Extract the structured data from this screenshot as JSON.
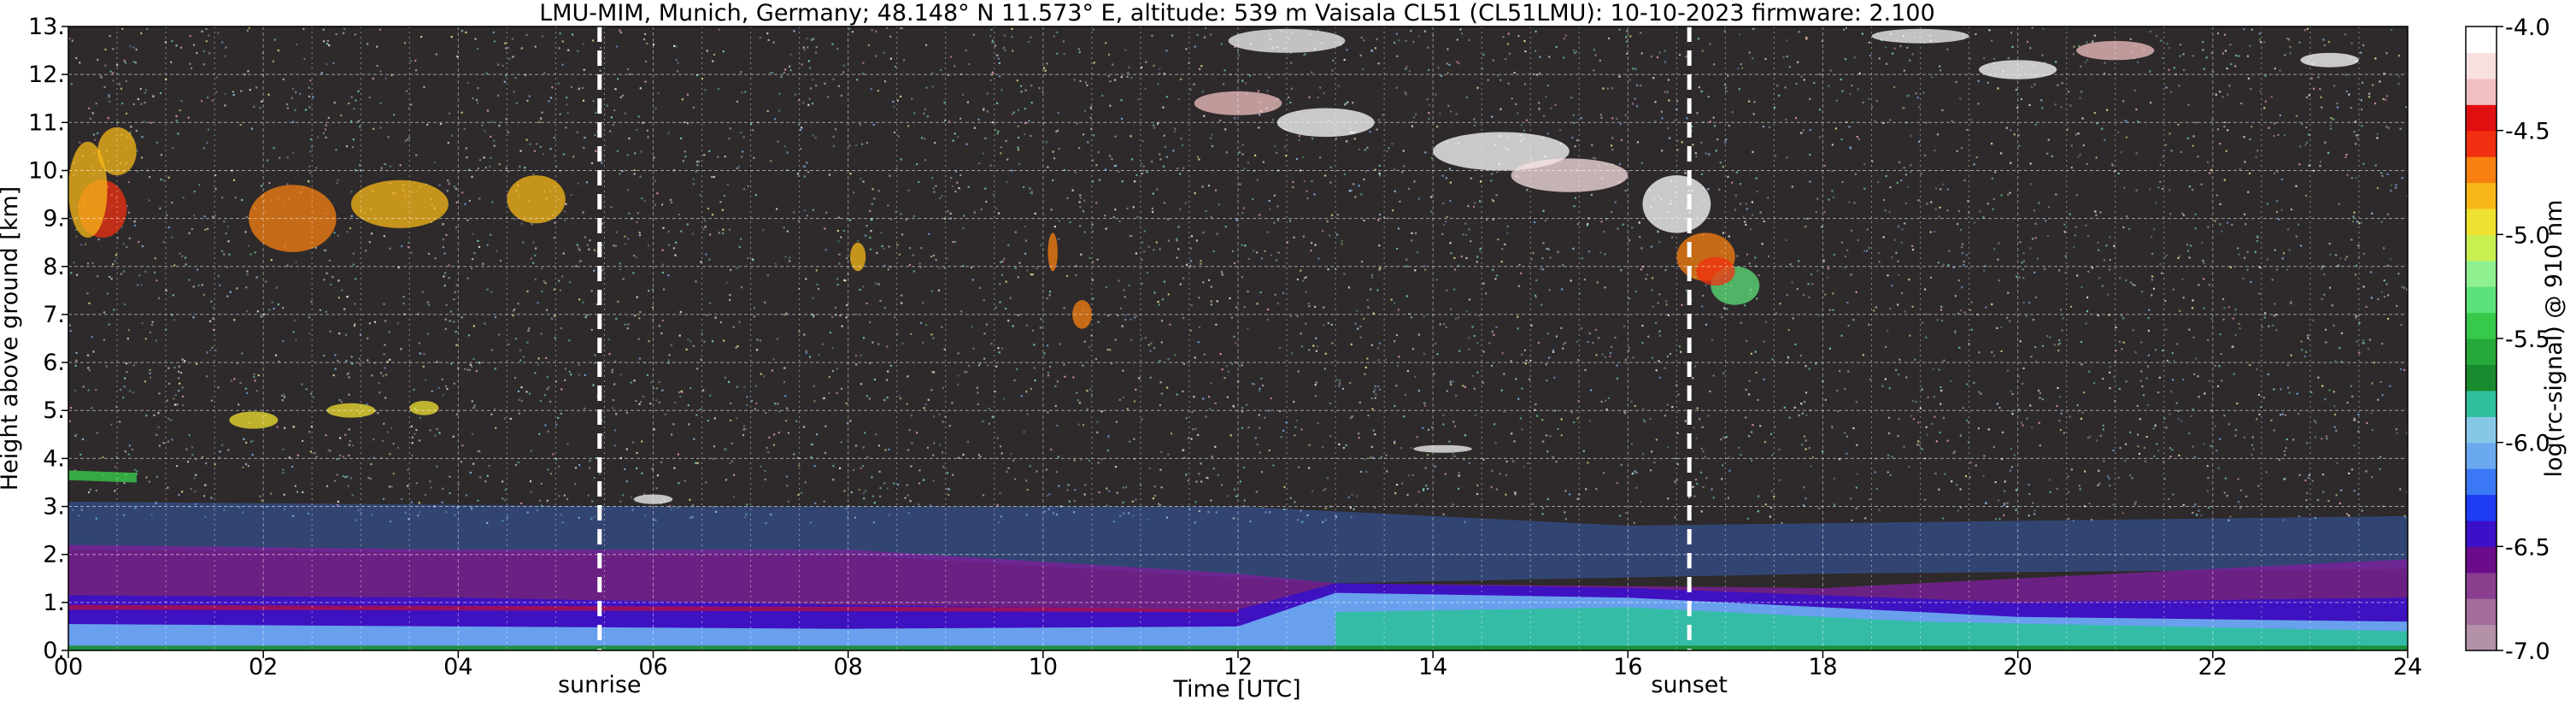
{
  "chart_data": {
    "type": "heatmap",
    "title": "LMU-MIM, Munich, Germany; 48.148° N 11.573° E, altitude: 539 m    Vaisala CL51 (CL51LMU): 10-10-2023    firmware: 2.100",
    "xlabel": "Time [UTC]",
    "ylabel": "Height above ground [km]",
    "colorbar_label": "log(rc-signal) @ 910 nm",
    "xlim": [
      0,
      24
    ],
    "ylim": [
      0,
      13
    ],
    "clim": [
      -7.0,
      -4.0
    ],
    "x_ticks": [
      0,
      2,
      4,
      6,
      8,
      10,
      12,
      14,
      16,
      18,
      20,
      22,
      24
    ],
    "x_tick_labels": [
      "00",
      "02",
      "04",
      "06",
      "08",
      "10",
      "12",
      "14",
      "16",
      "18",
      "20",
      "22",
      "24"
    ],
    "y_ticks": [
      0,
      1,
      2,
      3,
      4,
      5,
      6,
      7,
      8,
      9,
      10,
      11,
      12,
      13
    ],
    "y_tick_labels": [
      "0.",
      "1.",
      "2.",
      "3.",
      "4.",
      "5.",
      "6.",
      "7.",
      "8.",
      "9.",
      "10.",
      "11.",
      "12.",
      "13."
    ],
    "colorbar_ticks": [
      -7.0,
      -6.5,
      -6.0,
      -5.5,
      -5.0,
      -4.5,
      -4.0
    ],
    "colorbar_tick_labels": [
      "-7.0",
      "-6.5",
      "-6.0",
      "-5.5",
      "-5.0",
      "-4.5",
      "-4.0"
    ],
    "colormap": [
      "#b392a8",
      "#a36d9c",
      "#8a3f8f",
      "#6b0c8a",
      "#3a10c8",
      "#1e3cf5",
      "#3a78f6",
      "#6aa9ef",
      "#86c7e6",
      "#2fbf9f",
      "#1a8a2e",
      "#27a83a",
      "#37c94a",
      "#5ce27a",
      "#8ef08e",
      "#c8f050",
      "#f0e030",
      "#f8b818",
      "#f88010",
      "#f03010",
      "#e01010",
      "#f0c0c0",
      "#f8e0e0",
      "#ffffff"
    ],
    "grid": true,
    "vlines": [
      {
        "x": 5.45,
        "label": "sunrise"
      },
      {
        "x": 16.63,
        "label": "sunset"
      }
    ]
  }
}
